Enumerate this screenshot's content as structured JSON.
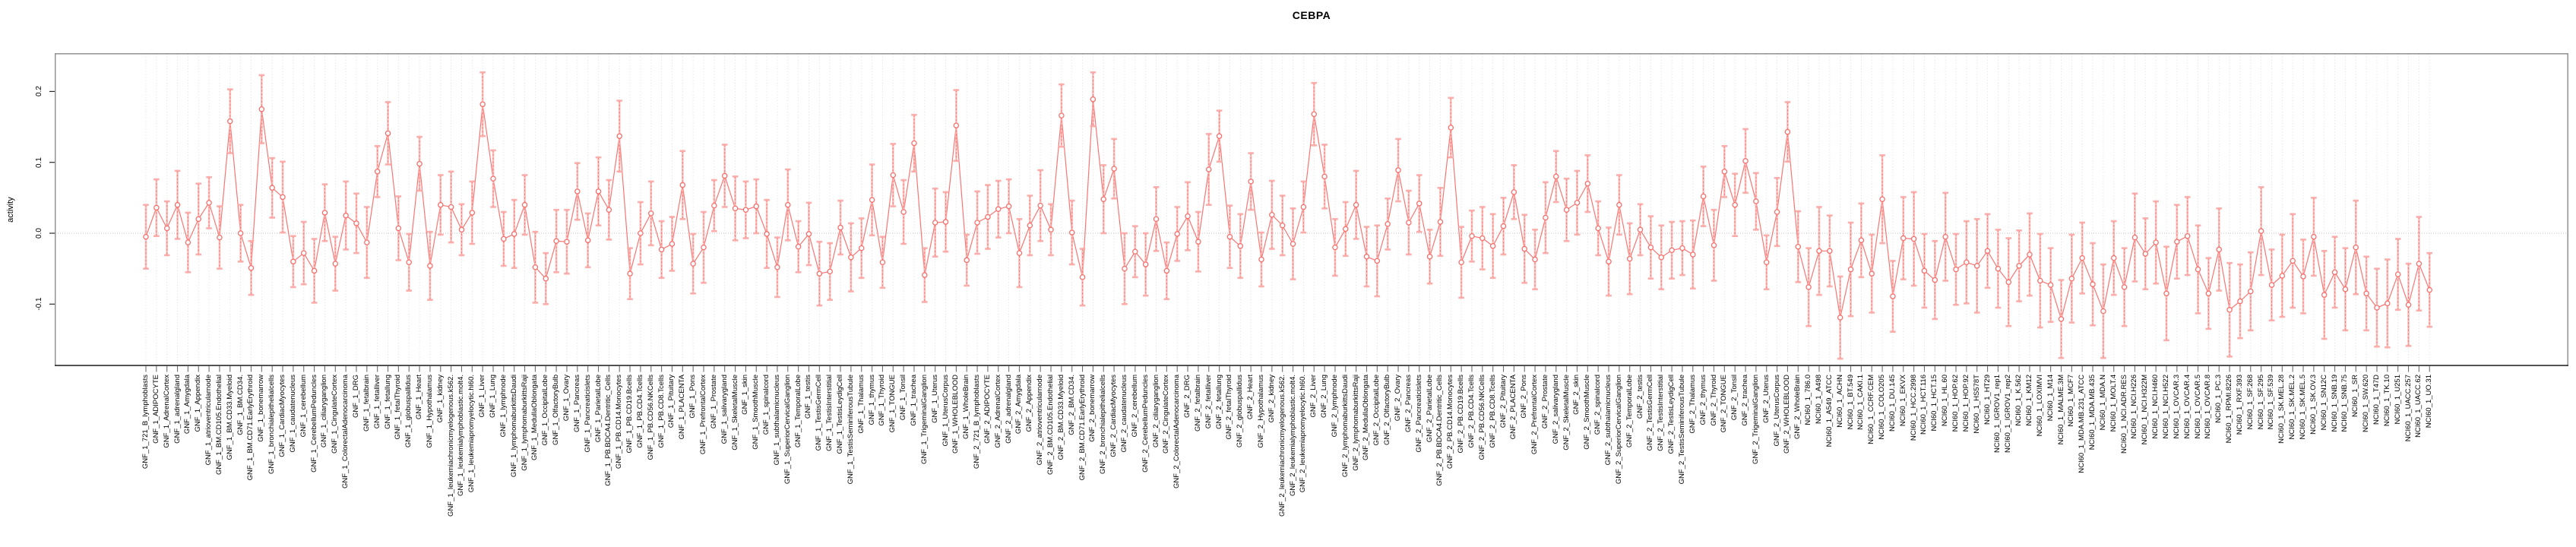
{
  "colors": {
    "series": "#f76f6c",
    "error_stem_underlay": "#fbb3b0",
    "error_cap": "#fbaaa7",
    "point_fill": "#ffffff",
    "grid": "#dadada",
    "zero_line": "#c0c0c0",
    "panel_border": "#919191",
    "axis_line": "#2b2b2b",
    "tick": "#6e6e6e",
    "text": "#000000"
  },
  "chart_data": {
    "type": "line",
    "subtype": "pointrange-errorbar",
    "title": "CEBPA",
    "xlabel": "",
    "ylabel": "activity",
    "ylim": [
      -0.175,
      0.25
    ],
    "yticks": [
      -0.1,
      0.0,
      0.1,
      0.2
    ],
    "ytick_labels": [
      "-0.1",
      "0.0",
      "0.1",
      "0.2"
    ],
    "grid": "vertical-dotted-per-category, dotted-zero-line",
    "legend_position": "none",
    "categories": [
      "GNF_1_721_B_lymphoblasts",
      "GNF_1_ADIPOCYTE",
      "GNF_1_AdrenalCortex",
      "GNF_1_adrenalgland",
      "GNF_1_Amygdala",
      "GNF_1_Appendix",
      "GNF_1_atrioventricularnode",
      "GNF_1_BM.CD105.Endothelial",
      "GNF_1_BM.CD33.Myeloid",
      "GNF_1_BM.CD34.",
      "GNF_1_BM.CD71.EarlyErythroid",
      "GNF_1_bonemarrow",
      "GNF_1_bronchialepithelialcells",
      "GNF_1_CardiacMyocytes",
      "GNF_1_caudatenucleus",
      "GNF_1_cerebellum",
      "GNF_1_CerebellumPeduncles",
      "GNF_1_ciliaryganglion",
      "GNF_1_CingulateCortex",
      "GNF_1_ColorectalAdenocarcinoma",
      "GNF_1_DRG",
      "GNF_1_fetalbrain",
      "GNF_1_fetalliver",
      "GNF_1_fetallung",
      "GNF_1_fetalThyroid",
      "GNF_1_globuspallidus",
      "GNF_1_Heart",
      "GNF_1_Hypothalamus",
      "GNF_1_kidney",
      "GNF_1_leukemiachronicmyelogenous.k562.",
      "GNF_1_leukemialymphoblastic.molt4.",
      "GNF_1_leukemiapromyelocytic.hl60.",
      "GNF_1_Liver",
      "GNF_1_Lung",
      "GNF_1_lymphnode",
      "GNF_1_lymphomaburkittsDaudi",
      "GNF_1_lymphomaburkittsRaji",
      "GNF_1_MedullaOblongata",
      "GNF_1_OccipitalLobe",
      "GNF_1_OlfactoryBulb",
      "GNF_1_Ovary",
      "GNF_1_Pancreas",
      "GNF_1_Pancreaticislets",
      "GNF_1_ParietalLobe",
      "GNF_1_PB.BDCA4.Dentritic_Cells",
      "GNF_1_PB.CD14.Monocytes",
      "GNF_1_PB.CD19.Bcells",
      "GNF_1_PB.CD4.Tcells",
      "GNF_1_PB.CD56.NKCells",
      "GNF_1_PB.CD8.Tcells",
      "GNF_1_Pituitary",
      "GNF_1_PLACENTA",
      "GNF_1_Pons",
      "GNF_1_PrefrontalCortex",
      "GNF_1_Prostate",
      "GNF_1_salivarygland",
      "GNF_1_SkeletalMuscle",
      "GNF_1_skin",
      "GNF_1_SmoothMuscle",
      "GNF_1_spinalcord",
      "GNF_1_subthalamicnucleus",
      "GNF_1_SuperiorCervicalGanglion",
      "GNF_1_TemporalLobe",
      "GNF_1_testis",
      "GNF_1_TestisGermCell",
      "GNF_1_TestisInterstitial",
      "GNF_1_TestisLeydigCell",
      "GNF_1_TestisSeminiferousTubule",
      "GNF_1_Thalamus",
      "GNF_1_thymus",
      "GNF_1_Thyroid",
      "GNF_1_TONGUE",
      "GNF_1_Tonsil",
      "GNF_1_trachea",
      "GNF_1_TrigeminalGanglion",
      "GNF_1_Uterus",
      "GNF_1_UterusCorpus",
      "GNF_1_WHOLEBLOOD",
      "GNF_1_WholeBrain",
      "GNF_2_721_B_lymphoblasts",
      "GNF_2_ADIPOCYTE",
      "GNF_2_AdrenalCortex",
      "GNF_2_adrenalgland",
      "GNF_2_Amygdala",
      "GNF_2_Appendix",
      "GNF_2_atrioventricularnode",
      "GNF_2_BM.CD105.Endothelial",
      "GNF_2_BM.CD33.Myeloid",
      "GNF_2_BM.CD34.",
      "GNF_2_BM.CD71.EarlyErythroid",
      "GNF_2_bonemarrow",
      "GNF_2_bronchialepithelialcells",
      "GNF_2_CardiacMyocytes",
      "GNF_2_caudatenucleus",
      "GNF_2_cerebellum",
      "GNF_2_CerebellumPeduncles",
      "GNF_2_ciliaryganglion",
      "GNF_2_CingulateCortex",
      "GNF_2_ColorectalAdenocarcinoma",
      "GNF_2_DRG",
      "GNF_2_fetalbrain",
      "GNF_2_fetalliver",
      "GNF_2_fetallung",
      "GNF_2_fetalThyroid",
      "GNF_2_globuspallidus",
      "GNF_2_Heart",
      "GNF_2_Hypothalamus",
      "GNF_2_kidney",
      "GNF_2_leukemiachronicmyelogenous.k562.",
      "GNF_2_leukemialymphoblastic.molt4.",
      "GNF_2_leukemiapromyelocytic.hl60.",
      "GNF_2_Liver",
      "GNF_2_Lung",
      "GNF_2_lymphnode",
      "GNF_2_lymphomaburkittsDaudi",
      "GNF_2_lymphomaburkittsRaji",
      "GNF_2_MedullaOblongata",
      "GNF_2_OccipitalLobe",
      "GNF_2_OlfactoryBulb",
      "GNF_2_Ovary",
      "GNF_2_Pancreas",
      "GNF_2_Pancreaticislets",
      "GNF_2_ParietalLobe",
      "GNF_2_PB.BDCA4.Dentritic_Cells",
      "GNF_2_PB.CD14.Monocytes",
      "GNF_2_PB.CD19.Bcells",
      "GNF_2_PB.CD4.Tcells",
      "GNF_2_PB.CD56.NKCells",
      "GNF_2_PB.CD8.Tcells",
      "GNF_2_Pituitary",
      "GNF_2_PLACENTA",
      "GNF_2_Pons",
      "GNF_2_PrefrontalCortex",
      "GNF_2_Prostate",
      "GNF_2_salivarygland",
      "GNF_2_SkeletalMuscle",
      "GNF_2_skin",
      "GNF_2_SmoothMuscle",
      "GNF_2_spinalcord",
      "GNF_2_subthalamicnucleus",
      "GNF_2_SuperiorCervicalGanglion",
      "GNF_2_TemporalLobe",
      "GNF_2_testis",
      "GNF_2_TestisGermCell",
      "GNF_2_TestisInterstitial",
      "GNF_2_TestisLeydigCell",
      "GNF_2_TestisSeminiferousTubule",
      "GNF_2_Thalamus",
      "GNF_2_thymus",
      "GNF_2_Thyroid",
      "GNF_2_TONGUE",
      "GNF_2_Tonsil",
      "GNF_2_trachea",
      "GNF_2_TrigeminalGanglion",
      "GNF_2_Uterus",
      "GNF_2_UterusCorpus",
      "GNF_2_WHOLEBLOOD",
      "GNF_2_WholeBrain",
      "NCI60_1_786.0",
      "NCI60_1_A498",
      "NCI60_1_A549_ATCC",
      "NCI60_1_ACHN",
      "NCI60_1_BT.549",
      "NCI60_1_CAKI.1",
      "NCI60_1_CCRF.CEM",
      "NCI60_1_COLO205",
      "NCI60_1_DU.145",
      "NCI60_1_EKVX",
      "NCI60_1_HCC.2998",
      "NCI60_1_HCT.116",
      "NCI60_1_HCT.15",
      "NCI60_1_HL.60",
      "NCI60_1_HOP.62",
      "NCI60_1_HOP.92",
      "NCI60_1_HS578T",
      "NCI60_1_HT29",
      "NCI60_1_IGROV1_rep1",
      "NCI60_1_IGROV1_rep2",
      "NCI60_1_K.562",
      "NCI60_1_KM12",
      "NCI60_1_LOXIMVI",
      "NCI60_1_M14",
      "NCI60_1_MALME.3M",
      "NCI60_1_MCF7",
      "NCI60_1_MDA.MB.231_ATCC",
      "NCI60_1_MDA.MB.435",
      "NCI60_1_MDA.N",
      "NCI60_1_MOLT.4",
      "NCI60_1_NCI.ADR.RES",
      "NCI60_1_NCI.H226",
      "NCI60_1_NCI.H322M",
      "NCI60_1_NCI.H460",
      "NCI60_1_NCI.H522",
      "NCI60_1_OVCAR.3",
      "NCI60_1_OVCAR.4",
      "NCI60_1_OVCAR.5",
      "NCI60_1_OVCAR.8",
      "NCI60_1_PC.3",
      "NCI60_1_RPMI.8226",
      "NCI60_1_RXF.393",
      "NCI60_1_SF.268",
      "NCI60_1_SF.295",
      "NCI60_1_SF.539",
      "NCI60_1_SK.MEL.28",
      "NCI60_1_SK.MEL.2",
      "NCI60_1_SK.MEL.5",
      "NCI60_1_SK.OV.3",
      "NCI60_1_SN12C",
      "NCI60_1_SNB.19",
      "NCI60_1_SNB.75",
      "NCI60_1_SR",
      "NCI60_1_SW.620",
      "NCI60_1_T47D",
      "NCI60_1_TK.10",
      "NCI60_1_U251",
      "NCI60_1_UACC.257",
      "NCI60_1_UACC.62",
      "NCI60_1_UO.31"
    ],
    "values": [
      -0.005,
      0.036,
      0.007,
      0.04,
      -0.013,
      0.02,
      0.043,
      -0.006,
      0.158,
      0.0,
      -0.049,
      0.175,
      0.064,
      0.051,
      -0.04,
      -0.028,
      -0.053,
      0.029,
      -0.043,
      0.025,
      0.014,
      -0.013,
      0.087,
      0.141,
      0.007,
      -0.041,
      0.098,
      -0.046,
      0.04,
      0.037,
      0.005,
      0.029,
      0.182,
      0.077,
      -0.008,
      -0.001,
      0.04,
      -0.048,
      -0.064,
      -0.011,
      -0.012,
      0.059,
      -0.01,
      0.059,
      0.033,
      0.137,
      -0.057,
      0.0,
      0.028,
      -0.023,
      -0.015,
      0.068,
      -0.043,
      -0.02,
      0.039,
      0.081,
      0.035,
      0.033,
      0.038,
      -0.001,
      -0.048,
      0.04,
      -0.019,
      -0.001,
      -0.057,
      -0.054,
      0.008,
      -0.034,
      -0.021,
      0.047,
      -0.041,
      0.082,
      0.03,
      0.127,
      -0.059,
      0.015,
      0.016,
      0.152,
      -0.038,
      0.015,
      0.023,
      0.034,
      0.038,
      -0.028,
      0.011,
      0.039,
      0.005,
      0.166,
      0.001,
      -0.062,
      0.189,
      0.048,
      0.091,
      -0.05,
      -0.026,
      -0.044,
      0.02,
      -0.053,
      -0.001,
      0.024,
      -0.012,
      0.09,
      0.137,
      -0.005,
      -0.018,
      0.073,
      -0.037,
      0.026,
      0.011,
      -0.015,
      0.037,
      0.168,
      0.08,
      -0.02,
      0.006,
      0.04,
      -0.033,
      -0.039,
      0.013,
      0.089,
      0.015,
      0.042,
      -0.033,
      0.016,
      0.149,
      -0.041,
      -0.004,
      -0.007,
      -0.018,
      0.01,
      0.058,
      -0.022,
      -0.037,
      0.022,
      0.08,
      0.033,
      0.043,
      0.07,
      0.007,
      -0.04,
      0.04,
      -0.036,
      0.005,
      -0.02,
      -0.034,
      -0.024,
      -0.021,
      -0.03,
      0.052,
      -0.017,
      0.087,
      0.04,
      0.102,
      0.045,
      -0.041,
      0.03,
      0.143,
      -0.019,
      -0.076,
      -0.025,
      -0.025,
      -0.119,
      -0.051,
      -0.01,
      -0.057,
      0.048,
      -0.089,
      -0.007,
      -0.008,
      -0.053,
      -0.066,
      -0.005,
      -0.051,
      -0.041,
      -0.046,
      -0.025,
      -0.05,
      -0.069,
      -0.046,
      -0.03,
      -0.067,
      -0.073,
      -0.121,
      -0.064,
      -0.035,
      -0.072,
      -0.11,
      -0.035,
      -0.076,
      -0.006,
      -0.029,
      -0.013,
      -0.085,
      -0.012,
      -0.004,
      -0.051,
      -0.085,
      -0.023,
      -0.108,
      -0.096,
      -0.082,
      0.003,
      -0.073,
      -0.06,
      -0.039,
      -0.061,
      -0.005,
      -0.087,
      -0.055,
      -0.079,
      -0.02,
      -0.085,
      -0.105,
      -0.099,
      -0.058,
      -0.101,
      -0.043,
      -0.08
    ],
    "ci_halfwidth": [
      0.045,
      0.04,
      0.038,
      0.048,
      0.042,
      0.05,
      0.036,
      0.044,
      0.045,
      0.04,
      0.038,
      0.048,
      0.042,
      0.05,
      0.036,
      0.044,
      0.045,
      0.04,
      0.038,
      0.048,
      0.042,
      0.05,
      0.036,
      0.044,
      0.045,
      0.04,
      0.038,
      0.048,
      0.042,
      0.05,
      0.036,
      0.044,
      0.045,
      0.04,
      0.038,
      0.048,
      0.042,
      0.05,
      0.036,
      0.044,
      0.045,
      0.04,
      0.038,
      0.048,
      0.042,
      0.05,
      0.036,
      0.044,
      0.045,
      0.04,
      0.038,
      0.048,
      0.042,
      0.05,
      0.036,
      0.044,
      0.045,
      0.04,
      0.038,
      0.048,
      0.042,
      0.05,
      0.036,
      0.044,
      0.045,
      0.04,
      0.038,
      0.048,
      0.042,
      0.05,
      0.036,
      0.044,
      0.045,
      0.04,
      0.038,
      0.048,
      0.042,
      0.05,
      0.036,
      0.044,
      0.045,
      0.04,
      0.038,
      0.048,
      0.042,
      0.05,
      0.036,
      0.044,
      0.045,
      0.04,
      0.038,
      0.048,
      0.042,
      0.05,
      0.036,
      0.044,
      0.045,
      0.04,
      0.038,
      0.048,
      0.042,
      0.05,
      0.036,
      0.044,
      0.045,
      0.04,
      0.038,
      0.048,
      0.042,
      0.05,
      0.036,
      0.044,
      0.045,
      0.04,
      0.038,
      0.048,
      0.042,
      0.05,
      0.036,
      0.044,
      0.045,
      0.04,
      0.038,
      0.048,
      0.042,
      0.05,
      0.036,
      0.044,
      0.045,
      0.04,
      0.038,
      0.048,
      0.042,
      0.05,
      0.036,
      0.044,
      0.045,
      0.04,
      0.038,
      0.048,
      0.042,
      0.05,
      0.036,
      0.044,
      0.045,
      0.04,
      0.038,
      0.048,
      0.042,
      0.05,
      0.036,
      0.044,
      0.045,
      0.04,
      0.038,
      0.048,
      0.042,
      0.05,
      0.055,
      0.062,
      0.05,
      0.058,
      0.066,
      0.052,
      0.055,
      0.062,
      0.05,
      0.058,
      0.066,
      0.052,
      0.055,
      0.062,
      0.05,
      0.058,
      0.066,
      0.052,
      0.055,
      0.062,
      0.05,
      0.058,
      0.066,
      0.052,
      0.055,
      0.062,
      0.05,
      0.058,
      0.066,
      0.052,
      0.055,
      0.062,
      0.05,
      0.058,
      0.066,
      0.052,
      0.055,
      0.062,
      0.05,
      0.058,
      0.066,
      0.052,
      0.055,
      0.062,
      0.05,
      0.058,
      0.066,
      0.052,
      0.055,
      0.062,
      0.05,
      0.058,
      0.066,
      0.052,
      0.055,
      0.062,
      0.05,
      0.058,
      0.066,
      0.052
    ]
  }
}
